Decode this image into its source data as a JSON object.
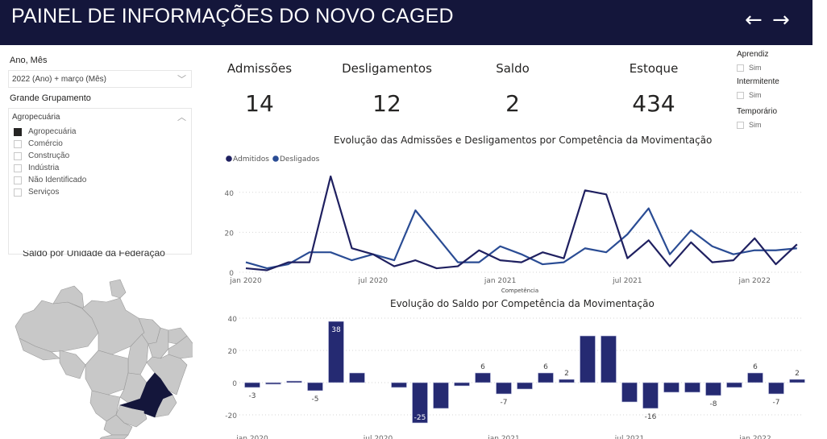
{
  "header": {
    "title": "PAINEL DE INFORMAÇÕES DO NOVO CAGED",
    "back_icon": "arrow-left-icon",
    "forward_icon": "arrow-right-icon",
    "back_glyph": "←",
    "forward_glyph": "→",
    "background": "#14163b"
  },
  "filters": {
    "period": {
      "label": "Ano, Mês",
      "value": "2022 (Ano) + março (Mês)",
      "chevron": "﹀"
    },
    "group": {
      "label": "Grande Grupamento",
      "value": "Agropecuária",
      "chevron": "︿",
      "options": [
        {
          "label": "Agropecuária",
          "checked": true
        },
        {
          "label": "Comércio",
          "checked": false
        },
        {
          "label": "Construção",
          "checked": false
        },
        {
          "label": "Indústria",
          "checked": false
        },
        {
          "label": "Não Identificado",
          "checked": false
        },
        {
          "label": "Serviços",
          "checked": false
        }
      ]
    }
  },
  "kpis": [
    {
      "label": "Admissões",
      "value": "14"
    },
    {
      "label": "Desligamentos",
      "value": "12"
    },
    {
      "label": "Saldo",
      "value": "2"
    },
    {
      "label": "Estoque",
      "value": "434"
    }
  ],
  "flags": [
    {
      "label": "Aprendiz",
      "option": "Sim",
      "checked": false
    },
    {
      "label": "Intermitente",
      "option": "Sim",
      "checked": false
    },
    {
      "label": "Temporário",
      "option": "Sim",
      "checked": false
    }
  ],
  "map": {
    "title": "Saldo por Unidade da Federação",
    "highlight_color": "#14163b",
    "base_color": "#c8c8c8"
  },
  "chart_data": [
    {
      "type": "line",
      "title": "Evolução das Admissões e Desligamentos por Competência da Movimentação",
      "xlabel": "Competência",
      "ylabel": "",
      "ylim": [
        0,
        50
      ],
      "yticks": [
        0,
        20,
        40
      ],
      "grid": true,
      "legend_position": "top-left",
      "x": [
        "jan 2020",
        "fev 2020",
        "mar 2020",
        "abr 2020",
        "mai 2020",
        "jun 2020",
        "jul 2020",
        "ago 2020",
        "set 2020",
        "out 2020",
        "nov 2020",
        "dez 2020",
        "jan 2021",
        "fev 2021",
        "mar 2021",
        "abr 2021",
        "mai 2021",
        "jun 2021",
        "jul 2021",
        "ago 2021",
        "set 2021",
        "out 2021",
        "nov 2021",
        "dez 2021",
        "jan 2022",
        "fev 2022",
        "mar 2022"
      ],
      "xtick_labels": [
        {
          "index": 0,
          "label": "jan 2020"
        },
        {
          "index": 6,
          "label": "jul 2020"
        },
        {
          "index": 12,
          "label": "jan 2021"
        },
        {
          "index": 18,
          "label": "jul 2021"
        },
        {
          "index": 24,
          "label": "jan 2022"
        }
      ],
      "series": [
        {
          "name": "Admitidos",
          "color": "#1f2060",
          "values": [
            2,
            1,
            5,
            5,
            48,
            12,
            9,
            3,
            6,
            2,
            3,
            11,
            6,
            5,
            10,
            7,
            41,
            39,
            7,
            16,
            3,
            15,
            5,
            6,
            17,
            4,
            14
          ]
        },
        {
          "name": "Desligados",
          "color": "#2a4c94",
          "values": [
            5,
            2,
            4,
            10,
            10,
            6,
            9,
            6,
            31,
            18,
            5,
            5,
            13,
            9,
            4,
            5,
            12,
            10,
            19,
            32,
            9,
            21,
            13,
            9,
            11,
            11,
            12
          ]
        }
      ]
    },
    {
      "type": "bar",
      "title": "Evolução do Saldo por Competência da Movimentação",
      "xlabel": "",
      "ylabel": "",
      "ylim": [
        -27,
        42
      ],
      "yticks": [
        -20,
        0,
        20,
        40
      ],
      "grid": true,
      "color": "#252a72",
      "categories": [
        "jan 2020",
        "fev 2020",
        "mar 2020",
        "abr 2020",
        "mai 2020",
        "jun 2020",
        "jul 2020",
        "ago 2020",
        "set 2020",
        "out 2020",
        "nov 2020",
        "dez 2020",
        "jan 2021",
        "fev 2021",
        "mar 2021",
        "abr 2021",
        "mai 2021",
        "jun 2021",
        "jul 2021",
        "ago 2021",
        "set 2021",
        "out 2021",
        "nov 2021",
        "dez 2021",
        "jan 2022",
        "fev 2022",
        "mar 2022"
      ],
      "xtick_labels": [
        {
          "index": 0,
          "label": "jan 2020"
        },
        {
          "index": 6,
          "label": "jul 2020"
        },
        {
          "index": 12,
          "label": "jan 2021"
        },
        {
          "index": 18,
          "label": "jul 2021"
        },
        {
          "index": 24,
          "label": "jan 2022"
        }
      ],
      "values": [
        -3,
        -1,
        1,
        -5,
        38,
        6,
        0,
        -3,
        -25,
        -16,
        -2,
        6,
        -7,
        -4,
        6,
        2,
        29,
        29,
        -12,
        -16,
        -6,
        -6,
        -8,
        -3,
        6,
        -7,
        2
      ],
      "data_labels": [
        {
          "index": 0,
          "label": "-3"
        },
        {
          "index": 3,
          "label": "-5"
        },
        {
          "index": 4,
          "label": "38"
        },
        {
          "index": 8,
          "label": "-25"
        },
        {
          "index": 11,
          "label": "6"
        },
        {
          "index": 12,
          "label": "-7"
        },
        {
          "index": 14,
          "label": "6"
        },
        {
          "index": 15,
          "label": "2"
        },
        {
          "index": 19,
          "label": "-16"
        },
        {
          "index": 22,
          "label": "-8"
        },
        {
          "index": 24,
          "label": "6"
        },
        {
          "index": 25,
          "label": "-7"
        },
        {
          "index": 26,
          "label": "2"
        }
      ]
    }
  ]
}
